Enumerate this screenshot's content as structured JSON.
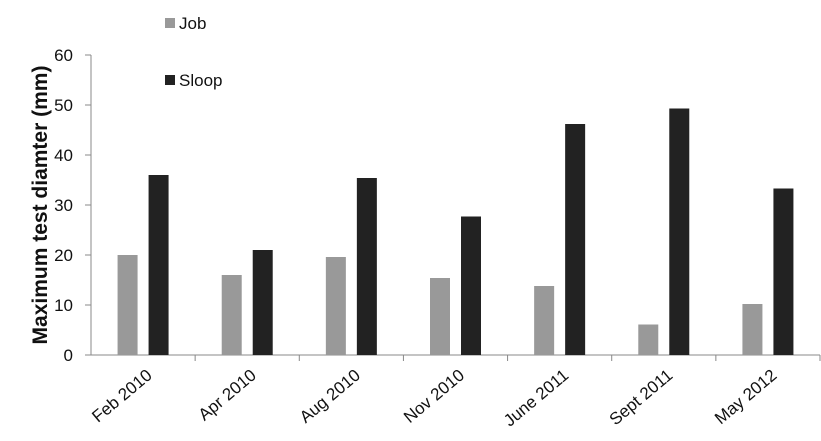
{
  "chart_data": {
    "type": "bar",
    "categories": [
      "Feb 2010",
      "Apr 2010",
      "Aug 2010",
      "Nov 2010",
      "June 2011",
      "Sept 2011",
      "May 2012"
    ],
    "series": [
      {
        "name": "Job",
        "values": [
          20.0,
          16.0,
          19.6,
          15.4,
          13.8,
          6.1,
          10.2
        ],
        "color": "#999999"
      },
      {
        "name": "Sloop",
        "values": [
          36.0,
          21.0,
          35.4,
          27.7,
          46.2,
          49.3,
          33.3
        ],
        "color": "#222222"
      }
    ],
    "title": "",
    "xlabel": "",
    "ylabel": "Maximum test diamter (mm)",
    "ylim": [
      0,
      60
    ],
    "yticks": [
      0,
      10,
      20,
      30,
      40,
      50,
      60
    ],
    "grid": false,
    "legend_position": "top-left"
  }
}
